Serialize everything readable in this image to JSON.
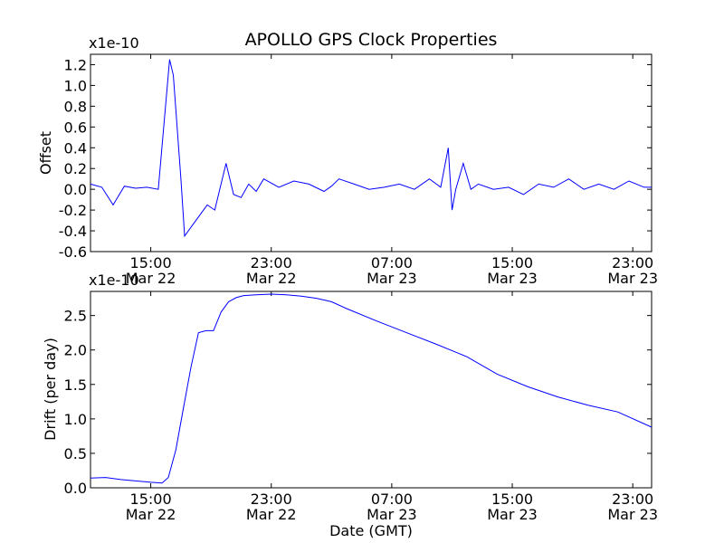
{
  "chart_data": [
    {
      "type": "line",
      "title": "APOLLO GPS Clock Properties",
      "xlabel": "",
      "ylabel": "Offset",
      "y_multiplier": "x1e-10",
      "xlim": [
        "2010-03-22 11:00",
        "2010-03-24 00:15"
      ],
      "ylim": [
        -0.6,
        1.3
      ],
      "x_ticks": [
        {
          "time": "15:00",
          "date": "Mar 22"
        },
        {
          "time": "23:00",
          "date": "Mar 22"
        },
        {
          "time": "07:00",
          "date": "Mar 23"
        },
        {
          "time": "15:00",
          "date": "Mar 23"
        },
        {
          "time": "23:00",
          "date": "Mar 23"
        }
      ],
      "y_ticks": [
        "-0.6",
        "-0.4",
        "-0.2",
        "0.0",
        "0.2",
        "0.4",
        "0.6",
        "0.8",
        "1.0",
        "1.2"
      ],
      "grid": false,
      "series": [
        {
          "color": "#0000ff",
          "x": [
            "2010-03-22 11:00",
            "2010-03-22 11:45",
            "2010-03-22 12:30",
            "2010-03-22 13:15",
            "2010-03-22 14:00",
            "2010-03-22 14:45",
            "2010-03-22 15:30",
            "2010-03-22 16:15",
            "2010-03-22 16:30",
            "2010-03-22 16:45",
            "2010-03-22 17:00",
            "2010-03-22 17:15",
            "2010-03-22 17:45",
            "2010-03-22 18:15",
            "2010-03-22 18:45",
            "2010-03-22 19:15",
            "2010-03-22 20:00",
            "2010-03-22 20:30",
            "2010-03-22 21:00",
            "2010-03-22 21:30",
            "2010-03-22 22:00",
            "2010-03-22 22:30",
            "2010-03-22 23:30",
            "2010-03-23 00:30",
            "2010-03-23 01:30",
            "2010-03-23 02:30",
            "2010-03-23 03:00",
            "2010-03-23 03:30",
            "2010-03-23 04:30",
            "2010-03-23 05:30",
            "2010-03-23 06:30",
            "2010-03-23 07:30",
            "2010-03-23 08:30",
            "2010-03-23 09:30",
            "2010-03-23 10:15",
            "2010-03-23 10:45",
            "2010-03-23 11:00",
            "2010-03-23 11:15",
            "2010-03-23 11:45",
            "2010-03-23 12:15",
            "2010-03-23 12:45",
            "2010-03-23 13:45",
            "2010-03-23 14:45",
            "2010-03-23 15:45",
            "2010-03-23 16:45",
            "2010-03-23 17:45",
            "2010-03-23 18:45",
            "2010-03-23 19:45",
            "2010-03-23 20:45",
            "2010-03-23 21:45",
            "2010-03-23 22:45",
            "2010-03-23 23:45",
            "2010-03-24 00:15"
          ],
          "y": [
            0.05,
            0.02,
            -0.15,
            0.03,
            0.01,
            0.02,
            0.0,
            1.25,
            1.1,
            0.6,
            0.1,
            -0.45,
            -0.35,
            -0.25,
            -0.15,
            -0.2,
            0.25,
            -0.05,
            -0.08,
            0.05,
            -0.02,
            0.1,
            0.02,
            0.08,
            0.05,
            -0.02,
            0.03,
            0.1,
            0.05,
            0.0,
            0.02,
            0.05,
            0.0,
            0.1,
            0.02,
            0.4,
            -0.2,
            0.0,
            0.25,
            0.0,
            0.05,
            0.0,
            0.02,
            -0.05,
            0.05,
            0.02,
            0.1,
            0.0,
            0.05,
            0.0,
            0.08,
            0.02,
            0.02
          ]
        }
      ]
    },
    {
      "type": "line",
      "title": "",
      "xlabel": "Date (GMT)",
      "ylabel": "Drift (per day)",
      "y_multiplier": "x1e-10",
      "xlim": [
        "2010-03-22 11:00",
        "2010-03-24 00:15"
      ],
      "ylim": [
        0.0,
        2.85
      ],
      "x_ticks": [
        {
          "time": "15:00",
          "date": "Mar 22"
        },
        {
          "time": "23:00",
          "date": "Mar 22"
        },
        {
          "time": "07:00",
          "date": "Mar 23"
        },
        {
          "time": "15:00",
          "date": "Mar 23"
        },
        {
          "time": "23:00",
          "date": "Mar 23"
        }
      ],
      "y_ticks": [
        "0.0",
        "0.5",
        "1.0",
        "1.5",
        "2.0",
        "2.5"
      ],
      "grid": false,
      "series": [
        {
          "color": "#0000ff",
          "x": [
            "2010-03-22 11:00",
            "2010-03-22 12:00",
            "2010-03-22 13:00",
            "2010-03-22 14:00",
            "2010-03-22 15:00",
            "2010-03-22 15:45",
            "2010-03-22 16:10",
            "2010-03-22 16:40",
            "2010-03-22 17:10",
            "2010-03-22 17:40",
            "2010-03-22 18:10",
            "2010-03-22 18:40",
            "2010-03-22 19:10",
            "2010-03-22 19:40",
            "2010-03-22 20:10",
            "2010-03-22 20:40",
            "2010-03-22 21:10",
            "2010-03-22 22:00",
            "2010-03-22 23:00",
            "2010-03-23 00:00",
            "2010-03-23 01:00",
            "2010-03-23 02:00",
            "2010-03-23 03:00",
            "2010-03-23 04:00",
            "2010-03-23 06:00",
            "2010-03-23 08:00",
            "2010-03-23 10:00",
            "2010-03-23 12:00",
            "2010-03-23 14:00",
            "2010-03-23 16:00",
            "2010-03-23 18:00",
            "2010-03-23 20:00",
            "2010-03-23 22:00",
            "2010-03-24 00:15"
          ],
          "y": [
            0.14,
            0.15,
            0.12,
            0.1,
            0.08,
            0.07,
            0.15,
            0.55,
            1.15,
            1.75,
            2.25,
            2.28,
            2.28,
            2.55,
            2.7,
            2.76,
            2.79,
            2.8,
            2.81,
            2.8,
            2.78,
            2.75,
            2.7,
            2.6,
            2.42,
            2.25,
            2.08,
            1.9,
            1.65,
            1.47,
            1.32,
            1.2,
            1.1,
            0.88
          ]
        }
      ]
    }
  ]
}
